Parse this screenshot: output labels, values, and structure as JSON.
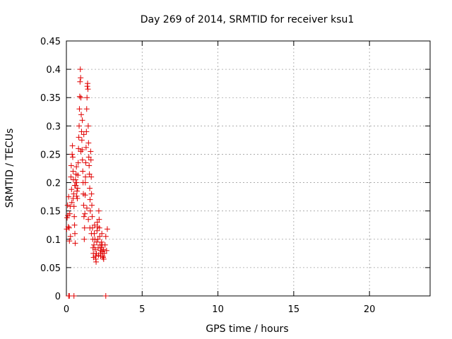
{
  "chart_data": {
    "type": "scatter",
    "title": "Day 269 of 2014, SRMTID for receiver ksu1",
    "xlabel": "GPS time / hours",
    "ylabel": "SRMTID / TECUs",
    "xlim": [
      0,
      24
    ],
    "ylim": [
      0,
      0.45
    ],
    "xticks": [
      0,
      5,
      10,
      15,
      20
    ],
    "xtick_labels": [
      "0",
      "5",
      "10",
      "15",
      "20"
    ],
    "yticks": [
      0,
      0.05,
      0.1,
      0.15,
      0.2,
      0.25,
      0.3,
      0.35,
      0.4,
      0.45
    ],
    "ytick_labels": [
      "0",
      "0.05",
      "0.1",
      "0.15",
      "0.2",
      "0.25",
      "0.3",
      "0.35",
      "0.4",
      "0.45"
    ],
    "grid": true,
    "marker": "+",
    "color": "#e00000",
    "series": [
      {
        "name": "SRMTID",
        "points": [
          [
            0.02,
            0.118
          ],
          [
            0.05,
            0.138
          ],
          [
            0.08,
            0.16
          ],
          [
            0.1,
            0.142
          ],
          [
            0.13,
            0.122
          ],
          [
            0.15,
            0.175
          ],
          [
            0.18,
            0.12
          ],
          [
            0.2,
            0.097
          ],
          [
            0.22,
            0.145
          ],
          [
            0.25,
            0.158
          ],
          [
            0.27,
            0.105
          ],
          [
            0.3,
            0.21
          ],
          [
            0.32,
            0.23
          ],
          [
            0.34,
            0.188
          ],
          [
            0.36,
            0.165
          ],
          [
            0.38,
            0.25
          ],
          [
            0.4,
            0.265
          ],
          [
            0.42,
            0.245
          ],
          [
            0.44,
            0.22
          ],
          [
            0.46,
            0.205
          ],
          [
            0.48,
            0.18
          ],
          [
            0.5,
            0.158
          ],
          [
            0.52,
            0.14
          ],
          [
            0.54,
            0.125
          ],
          [
            0.56,
            0.11
          ],
          [
            0.58,
            0.093
          ],
          [
            0.6,
            0.205
          ],
          [
            0.62,
            0.195
          ],
          [
            0.64,
            0.215
          ],
          [
            0.66,
            0.228
          ],
          [
            0.68,
            0.2
          ],
          [
            0.7,
            0.185
          ],
          [
            0.72,
            0.172
          ],
          [
            0.74,
            0.19
          ],
          [
            0.76,
            0.213
          ],
          [
            0.78,
            0.235
          ],
          [
            0.8,
            0.26
          ],
          [
            0.82,
            0.28
          ],
          [
            0.84,
            0.3
          ],
          [
            0.86,
            0.33
          ],
          [
            0.88,
            0.352
          ],
          [
            0.9,
            0.378
          ],
          [
            0.92,
            0.4
          ],
          [
            0.94,
            0.385
          ],
          [
            0.96,
            0.35
          ],
          [
            0.98,
            0.32
          ],
          [
            1.0,
            0.29
          ],
          [
            1.02,
            0.275
          ],
          [
            1.04,
            0.258
          ],
          [
            1.06,
            0.24
          ],
          [
            1.08,
            0.22
          ],
          [
            1.1,
            0.2
          ],
          [
            1.12,
            0.18
          ],
          [
            1.14,
            0.16
          ],
          [
            1.16,
            0.14
          ],
          [
            1.18,
            0.1
          ],
          [
            1.2,
            0.12
          ],
          [
            1.22,
            0.145
          ],
          [
            1.24,
            0.178
          ],
          [
            1.26,
            0.21
          ],
          [
            1.28,
            0.235
          ],
          [
            1.3,
            0.262
          ],
          [
            1.32,
            0.29
          ],
          [
            1.34,
            0.33
          ],
          [
            1.36,
            0.35
          ],
          [
            1.38,
            0.37
          ],
          [
            1.4,
            0.375
          ],
          [
            1.42,
            0.365
          ],
          [
            1.44,
            0.3
          ],
          [
            1.46,
            0.27
          ],
          [
            1.48,
            0.245
          ],
          [
            1.5,
            0.23
          ],
          [
            1.52,
            0.215
          ],
          [
            1.54,
            0.19
          ],
          [
            1.56,
            0.17
          ],
          [
            1.58,
            0.15
          ],
          [
            1.6,
            0.255
          ],
          [
            1.62,
            0.24
          ],
          [
            1.64,
            0.21
          ],
          [
            1.66,
            0.18
          ],
          [
            1.68,
            0.16
          ],
          [
            1.7,
            0.14
          ],
          [
            1.72,
            0.12
          ],
          [
            1.74,
            0.1
          ],
          [
            1.76,
            0.085
          ],
          [
            1.78,
            0.075
          ],
          [
            1.8,
            0.068
          ],
          [
            1.82,
            0.09
          ],
          [
            1.84,
            0.11
          ],
          [
            1.86,
            0.125
          ],
          [
            1.88,
            0.1
          ],
          [
            1.9,
            0.082
          ],
          [
            1.92,
            0.07
          ],
          [
            1.94,
            0.065
          ],
          [
            1.96,
            0.06
          ],
          [
            1.98,
            0.075
          ],
          [
            2.0,
            0.095
          ],
          [
            2.02,
            0.115
          ],
          [
            2.04,
            0.13
          ],
          [
            2.06,
            0.122
          ],
          [
            2.08,
            0.1
          ],
          [
            2.1,
            0.085
          ],
          [
            2.12,
            0.072
          ],
          [
            2.14,
            0.15
          ],
          [
            2.16,
            0.135
          ],
          [
            2.18,
            0.12
          ],
          [
            2.2,
            0.105
          ],
          [
            2.22,
            0.09
          ],
          [
            2.24,
            0.08
          ],
          [
            2.26,
            0.07
          ],
          [
            2.28,
            0.075
          ],
          [
            2.3,
            0.085
          ],
          [
            2.32,
            0.095
          ],
          [
            2.34,
            0.11
          ],
          [
            2.36,
            0.09
          ],
          [
            2.38,
            0.078
          ],
          [
            2.4,
            0.07
          ],
          [
            2.42,
            0.068
          ],
          [
            2.44,
            0.082
          ],
          [
            2.46,
            0.065
          ],
          [
            2.5,
            0.075
          ],
          [
            2.55,
            0.09
          ],
          [
            2.6,
            0.105
          ],
          [
            2.65,
            0.08
          ],
          [
            2.7,
            0.118
          ],
          [
            0.45,
            0.172
          ],
          [
            0.55,
            0.195
          ],
          [
            0.68,
            0.176
          ],
          [
            0.95,
            0.255
          ],
          [
            1.05,
            0.31
          ],
          [
            1.15,
            0.285
          ],
          [
            1.25,
            0.2
          ],
          [
            1.35,
            0.155
          ],
          [
            1.45,
            0.135
          ],
          [
            1.55,
            0.12
          ],
          [
            1.65,
            0.11
          ],
          [
            0.15,
            0.0
          ],
          [
            0.2,
            0.0
          ],
          [
            0.5,
            0.0
          ],
          [
            2.6,
            0.0
          ]
        ]
      }
    ]
  }
}
